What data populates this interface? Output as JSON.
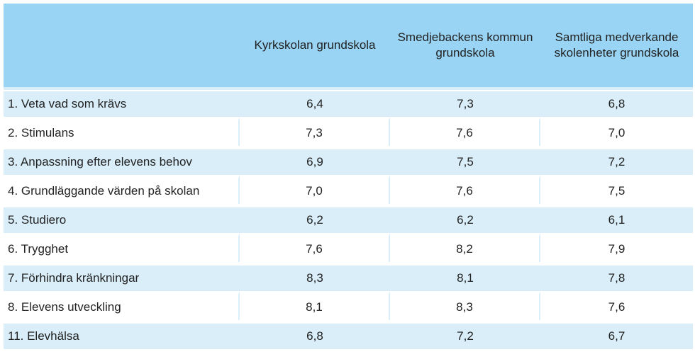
{
  "table": {
    "headers": [
      "",
      "Kyrkskolan grundskola",
      "Smedjebackens kommun grundskola",
      "Samtliga medverkande skolenheter grundskola"
    ],
    "rows": [
      [
        "1. Veta vad som krävs",
        "6,4",
        "7,3",
        "6,8"
      ],
      [
        "2. Stimulans",
        "7,3",
        "7,6",
        "7,0"
      ],
      [
        "3. Anpassning efter elevens behov",
        "6,9",
        "7,5",
        "7,2"
      ],
      [
        "4. Grundläggande värden på skolan",
        "7,0",
        "7,6",
        "7,5"
      ],
      [
        "5. Studiero",
        "6,2",
        "6,2",
        "6,1"
      ],
      [
        "6. Trygghet",
        "7,6",
        "8,2",
        "7,9"
      ],
      [
        "7. Förhindra kränkningar",
        "8,3",
        "8,1",
        "7,8"
      ],
      [
        "8. Elevens utveckling",
        "8,1",
        "8,3",
        "7,6"
      ],
      [
        "11. Elevhälsa",
        "6,8",
        "7,2",
        "6,7"
      ]
    ]
  }
}
